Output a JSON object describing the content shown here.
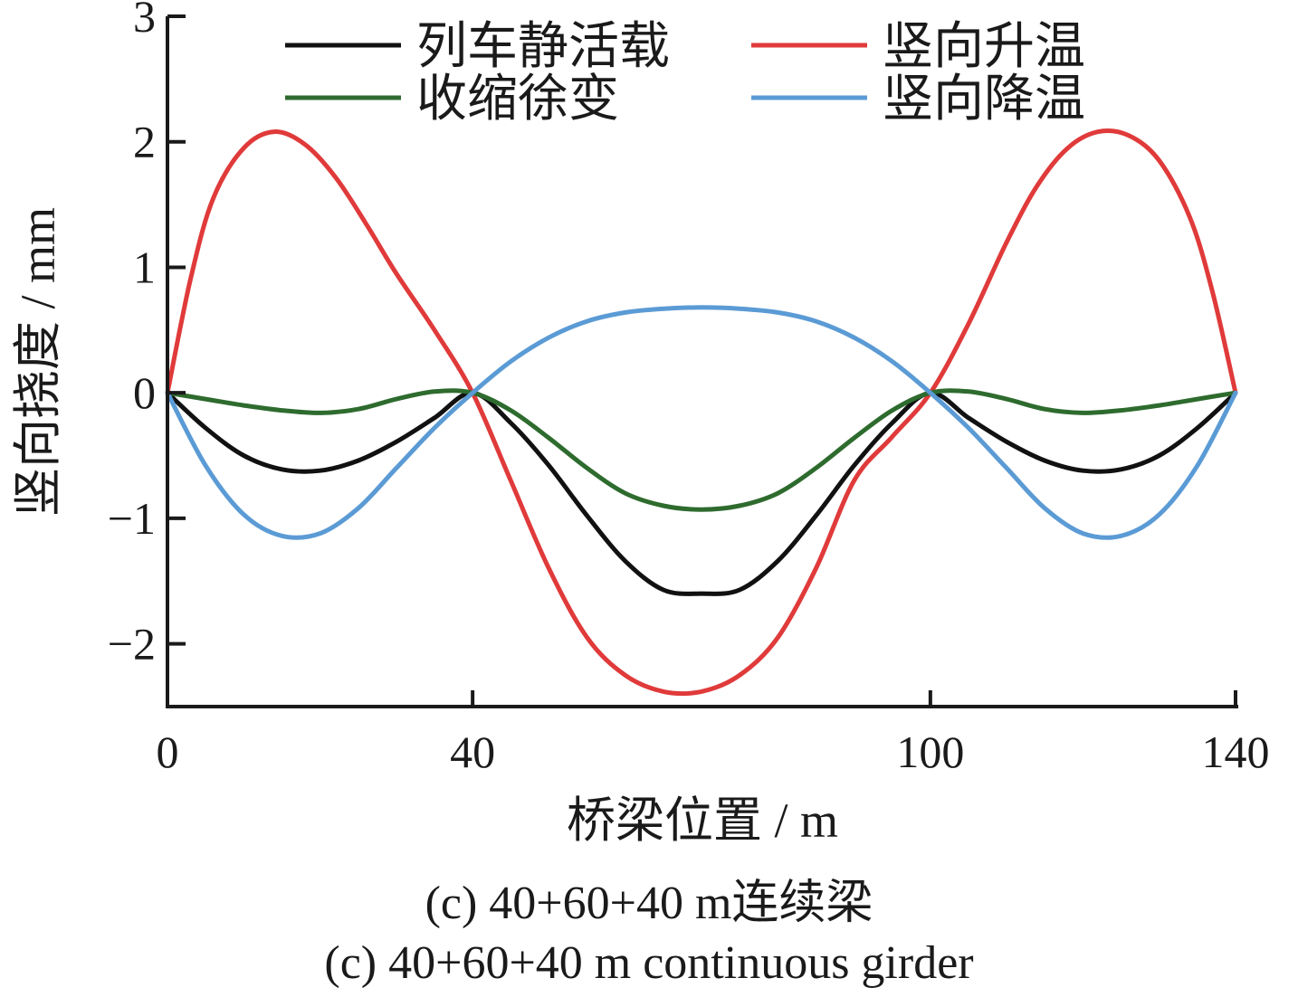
{
  "chart_data": {
    "type": "line",
    "xlabel": "桥梁位置 / m",
    "ylabel": "竖向挠度 / mm",
    "xlim": [
      0,
      140
    ],
    "ylim": [
      -2.5,
      3
    ],
    "x_ticks": [
      0,
      40,
      100,
      140
    ],
    "y_ticks": [
      -2,
      -1,
      0,
      1,
      2,
      3
    ],
    "y_tick_labels": [
      "−2",
      "−1",
      "0",
      "1",
      "2",
      "3"
    ],
    "grid": false,
    "legend_position": "top",
    "series": [
      {
        "name": "列车静活载",
        "color": "#111111",
        "x": [
          0,
          5,
          10,
          15,
          20,
          25,
          30,
          35,
          40,
          45,
          50,
          55,
          60,
          65,
          70,
          75,
          80,
          85,
          90,
          95,
          100,
          105,
          110,
          115,
          120,
          125,
          130,
          135,
          140
        ],
        "values": [
          0,
          -0.28,
          -0.5,
          -0.61,
          -0.62,
          -0.54,
          -0.39,
          -0.2,
          0,
          -0.24,
          -0.58,
          -0.98,
          -1.34,
          -1.57,
          -1.6,
          -1.57,
          -1.34,
          -0.98,
          -0.58,
          -0.24,
          0,
          -0.2,
          -0.39,
          -0.54,
          -0.62,
          -0.61,
          -0.5,
          -0.28,
          0
        ]
      },
      {
        "name": "竖向升温",
        "color": "#e03a3a",
        "x": [
          0,
          3,
          6,
          10,
          14,
          18,
          22,
          26,
          30,
          35,
          40,
          45,
          50,
          55,
          60,
          65,
          70,
          75,
          80,
          85,
          90,
          95,
          100,
          105,
          110,
          114,
          118,
          122,
          126,
          130,
          134,
          137,
          140
        ],
        "values": [
          0,
          0.9,
          1.55,
          1.95,
          2.08,
          1.98,
          1.72,
          1.35,
          0.95,
          0.5,
          0,
          -0.7,
          -1.4,
          -1.95,
          -2.25,
          -2.38,
          -2.38,
          -2.25,
          -1.95,
          -1.4,
          -0.7,
          -0.35,
          0,
          0.55,
          1.2,
          1.65,
          1.95,
          2.08,
          2.05,
          1.85,
          1.4,
          0.8,
          0
        ]
      },
      {
        "name": "收缩徐变",
        "color": "#2e6b2e",
        "x": [
          0,
          5,
          10,
          15,
          20,
          25,
          30,
          35,
          40,
          45,
          50,
          55,
          60,
          65,
          70,
          75,
          80,
          85,
          90,
          95,
          100,
          105,
          110,
          115,
          120,
          125,
          130,
          135,
          140
        ],
        "values": [
          0,
          -0.05,
          -0.1,
          -0.14,
          -0.16,
          -0.13,
          -0.05,
          0.01,
          0,
          -0.14,
          -0.36,
          -0.6,
          -0.8,
          -0.9,
          -0.93,
          -0.9,
          -0.8,
          -0.6,
          -0.36,
          -0.14,
          0,
          0.01,
          -0.05,
          -0.13,
          -0.16,
          -0.14,
          -0.1,
          -0.05,
          0
        ]
      },
      {
        "name": "竖向降温",
        "color": "#5b9bd5",
        "x": [
          0,
          5,
          10,
          15,
          20,
          25,
          30,
          35,
          40,
          45,
          50,
          55,
          60,
          65,
          70,
          75,
          80,
          85,
          90,
          95,
          100,
          105,
          110,
          115,
          120,
          125,
          130,
          135,
          140
        ],
        "values": [
          0,
          -0.58,
          -0.97,
          -1.14,
          -1.12,
          -0.92,
          -0.6,
          -0.28,
          0,
          0.25,
          0.44,
          0.57,
          0.64,
          0.67,
          0.68,
          0.67,
          0.64,
          0.57,
          0.44,
          0.25,
          0,
          -0.28,
          -0.6,
          -0.92,
          -1.12,
          -1.14,
          -0.97,
          -0.58,
          0
        ]
      }
    ]
  },
  "captions": {
    "cn": "(c) 40+60+40 m连续梁",
    "en": "(c) 40+60+40 m continuous girder"
  }
}
